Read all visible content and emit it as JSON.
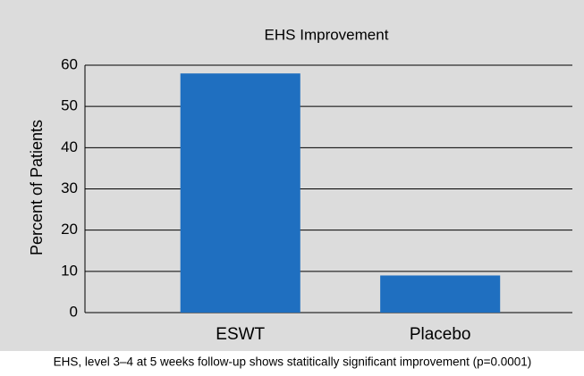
{
  "chart_data": {
    "type": "bar",
    "title": "EHS Improvement",
    "ylabel": "Percent of Patients",
    "categories": [
      "ESWT",
      "Placebo"
    ],
    "values": [
      58,
      9
    ],
    "color": "#1f6fc0",
    "ylim": [
      0,
      60
    ],
    "yticks": [
      0,
      10,
      20,
      30,
      40,
      50,
      60
    ],
    "grid": true,
    "caption": "EHS, level 3–4 at 5 weeks follow-up shows statitically significant improvement (p=0.0001)"
  }
}
